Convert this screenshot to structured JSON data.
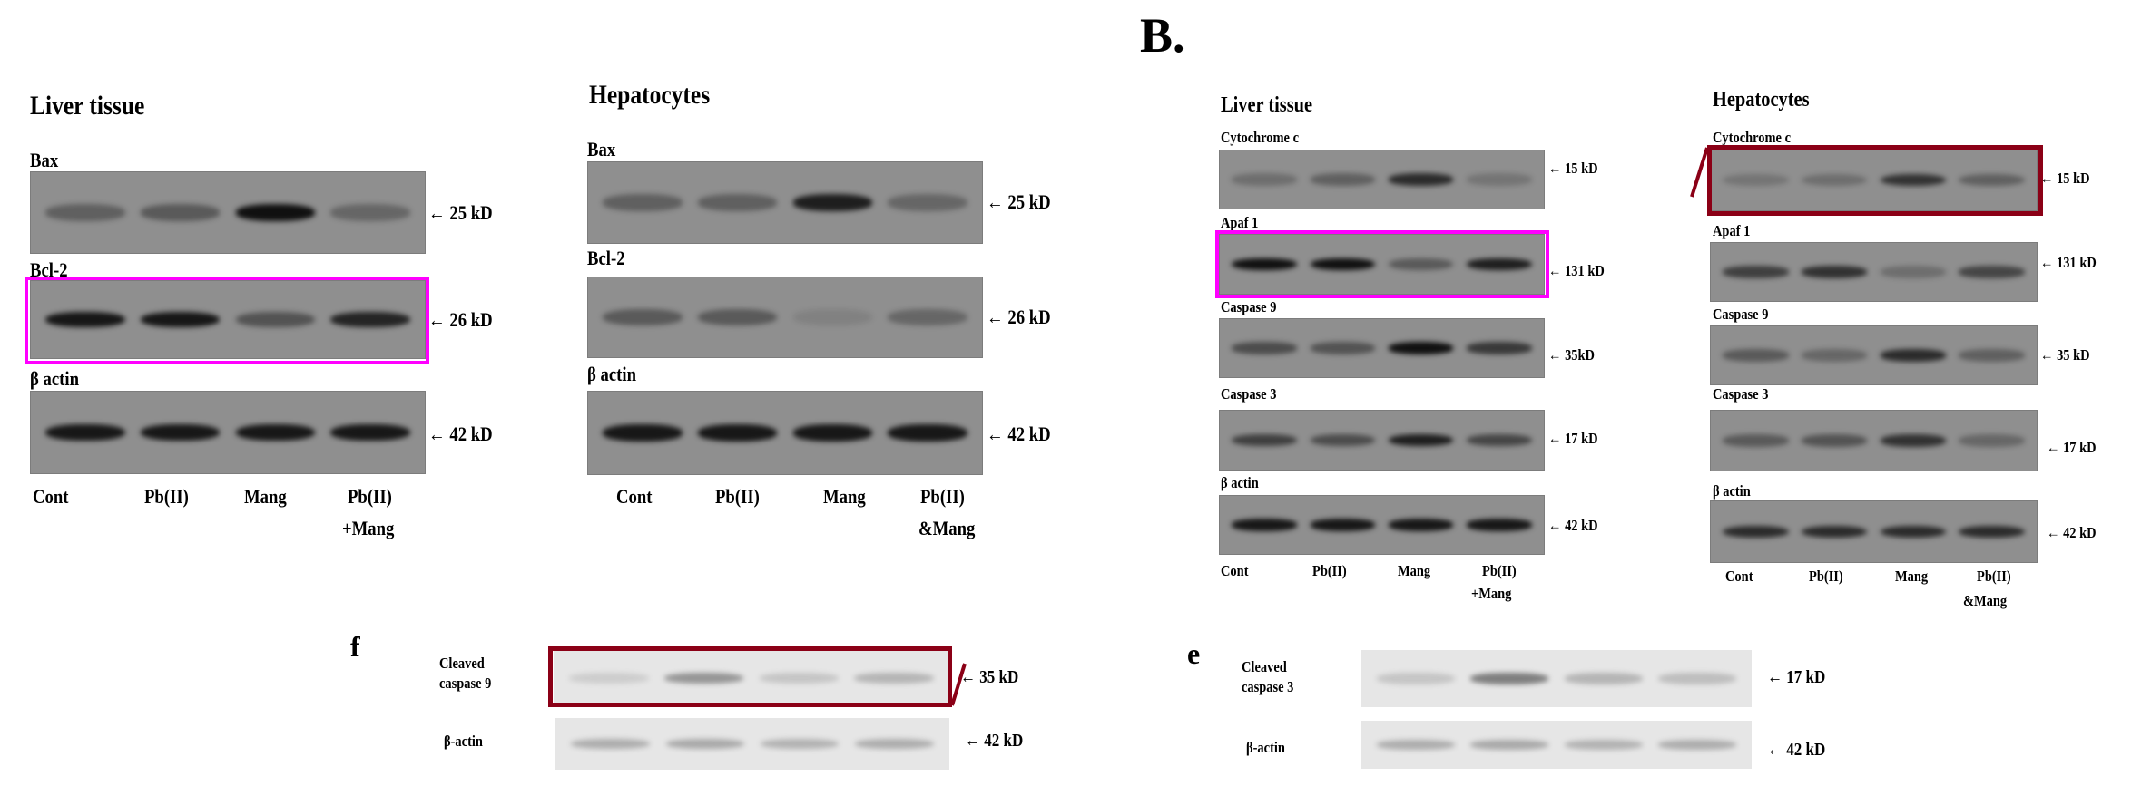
{
  "panel_a": {
    "liver": {
      "title": "Liver tissue",
      "blots": [
        {
          "label": "Bax",
          "kd": "← 25 kD",
          "bands": [
            0.35,
            0.4,
            0.95,
            0.3
          ]
        },
        {
          "label": "Bcl-2",
          "kd": "← 26 kD",
          "bands": [
            0.9,
            0.9,
            0.45,
            0.8
          ]
        },
        {
          "label": "β actin",
          "kd": "← 42 kD",
          "bands": [
            0.9,
            0.9,
            0.9,
            0.9
          ]
        }
      ],
      "lanes": [
        [
          "Cont",
          ""
        ],
        [
          "Pb(II)",
          ""
        ],
        [
          "Mang",
          ""
        ],
        [
          "Pb(II)",
          "+Mang"
        ]
      ]
    },
    "hepatocytes": {
      "title": "Hepatocytes",
      "blots": [
        {
          "label": "Bax",
          "kd": "← 25 kD",
          "bands": [
            0.35,
            0.35,
            0.85,
            0.3
          ]
        },
        {
          "label": "Bcl-2",
          "kd": "← 26 kD",
          "bands": [
            0.4,
            0.4,
            0.1,
            0.3
          ]
        },
        {
          "label": "β actin",
          "kd": "← 42 kD",
          "bands": [
            0.9,
            0.9,
            0.9,
            0.9
          ]
        }
      ],
      "lanes": [
        [
          "Cont",
          ""
        ],
        [
          "Pb(II)",
          ""
        ],
        [
          "Mang",
          ""
        ],
        [
          "Pb(II)",
          "&Mang"
        ]
      ]
    }
  },
  "panel_b": {
    "letter": "B.",
    "liver": {
      "title": "Liver tissue",
      "blots": [
        {
          "label": "Cytochrome c",
          "kd": "← 15 kD",
          "bands": [
            0.25,
            0.35,
            0.75,
            0.2
          ]
        },
        {
          "label": "Apaf 1",
          "kd": "← 131 kD",
          "bands": [
            0.95,
            0.95,
            0.4,
            0.85
          ]
        },
        {
          "label": "Caspase 9",
          "kd": "← 35kD",
          "bands": [
            0.5,
            0.45,
            0.95,
            0.65
          ]
        },
        {
          "label": "Caspase 3",
          "kd": "← 17 kD",
          "bands": [
            0.6,
            0.5,
            0.85,
            0.55
          ]
        },
        {
          "label": "β actin",
          "kd": "← 42 kD",
          "bands": [
            0.9,
            0.9,
            0.9,
            0.9
          ]
        }
      ],
      "lanes": [
        [
          "Cont",
          ""
        ],
        [
          "Pb(II)",
          ""
        ],
        [
          "Mang",
          ""
        ],
        [
          "Pb(II)",
          "+Mang"
        ]
      ]
    },
    "hepatocytes": {
      "title": "Hepatocytes",
      "blots": [
        {
          "label": "Cytochrome c",
          "kd": "← 15 kD",
          "bands": [
            0.2,
            0.25,
            0.7,
            0.35
          ]
        },
        {
          "label": "Apaf 1",
          "kd": "← 131 kD",
          "bands": [
            0.6,
            0.7,
            0.25,
            0.55
          ]
        },
        {
          "label": "Caspase 9",
          "kd": "← 35 kD",
          "bands": [
            0.4,
            0.3,
            0.75,
            0.35
          ]
        },
        {
          "label": "Caspase 3",
          "kd": "← 17 kD",
          "bands": [
            0.4,
            0.45,
            0.7,
            0.3
          ]
        },
        {
          "label": "β actin",
          "kd": "← 42 kD",
          "bands": [
            0.75,
            0.75,
            0.75,
            0.75
          ]
        }
      ],
      "lanes": [
        [
          "Cont",
          ""
        ],
        [
          "Pb(II)",
          ""
        ],
        [
          "Mang",
          ""
        ],
        [
          "Pb(II)",
          "&Mang"
        ]
      ]
    }
  },
  "panel_f": {
    "letter": "f",
    "blots": [
      {
        "label": [
          "Cleaved",
          "caspase 9"
        ],
        "kd": "← 35 kD",
        "bands": [
          0.15,
          0.5,
          0.2,
          0.3
        ]
      },
      {
        "label": [
          "β-actin"
        ],
        "kd": "← 42 kD",
        "bands": [
          0.35,
          0.38,
          0.32,
          0.35
        ]
      }
    ]
  },
  "panel_e": {
    "letter": "e",
    "blots": [
      {
        "label": [
          "Cleaved",
          "caspase 3"
        ],
        "kd": "← 17 kD",
        "bands": [
          0.2,
          0.65,
          0.3,
          0.25
        ]
      },
      {
        "label": [
          "β-actin"
        ],
        "kd": "← 42 kD",
        "bands": [
          0.35,
          0.38,
          0.32,
          0.35
        ]
      }
    ]
  },
  "highlights": {
    "magenta": "#ff00ff",
    "dark_red": "#8b0016"
  }
}
